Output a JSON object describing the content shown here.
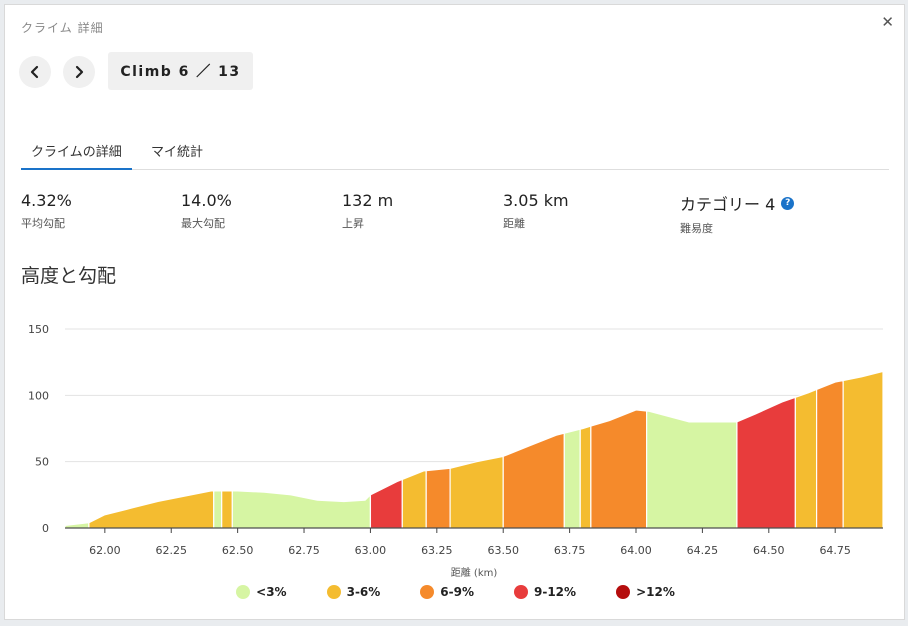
{
  "window": {
    "title": "クライム 詳細",
    "close_label": "✕"
  },
  "nav": {
    "prev_icon": "chevron-left-icon",
    "next_icon": "chevron-right-icon",
    "climb_label": "Climb 6 ／ 13"
  },
  "tabs": [
    {
      "label": "クライムの詳細",
      "active": true
    },
    {
      "label": "マイ統計",
      "active": false
    }
  ],
  "stats": [
    {
      "value": "4.32%",
      "label": "平均勾配"
    },
    {
      "value": "14.0%",
      "label": "最大勾配"
    },
    {
      "value": "132 m",
      "label": "上昇"
    },
    {
      "value": "3.05 km",
      "label": "距離"
    },
    {
      "value": "カテゴリー 4",
      "label": "難易度",
      "help": "?"
    }
  ],
  "section": {
    "title": "高度と勾配"
  },
  "chart_data": {
    "type": "area",
    "xlabel": "距離 (km)",
    "ylabel": "",
    "xlim": [
      61.85,
      64.93
    ],
    "ylim": [
      0,
      150
    ],
    "y_ticks": [
      0,
      50,
      100,
      150
    ],
    "x_ticks": [
      "62.00",
      "62.25",
      "62.50",
      "62.75",
      "63.00",
      "63.25",
      "63.50",
      "63.75",
      "64.00",
      "64.25",
      "64.50",
      "64.75"
    ],
    "grid": true,
    "profile": {
      "x": [
        61.85,
        61.94,
        62.0,
        62.1,
        62.2,
        62.3,
        62.4,
        62.5,
        62.6,
        62.7,
        62.8,
        62.9,
        62.98,
        63.0,
        63.1,
        63.2,
        63.3,
        63.4,
        63.5,
        63.6,
        63.7,
        63.8,
        63.9,
        64.0,
        64.05,
        64.2,
        64.38,
        64.45,
        64.55,
        64.65,
        64.75,
        64.85,
        64.93
      ],
      "y": [
        2,
        4,
        10,
        15,
        20,
        24,
        28,
        28,
        27,
        25,
        21,
        20,
        21,
        25,
        35,
        43,
        45,
        50,
        54,
        62,
        70,
        75,
        81,
        89,
        88,
        80,
        80,
        86,
        95,
        102,
        110,
        114,
        118
      ]
    },
    "segments": [
      {
        "start": 61.85,
        "end": 61.94,
        "grade": "<3%"
      },
      {
        "start": 61.94,
        "end": 62.41,
        "grade": "3-6%"
      },
      {
        "start": 62.41,
        "end": 62.44,
        "grade": "<3%"
      },
      {
        "start": 62.44,
        "end": 62.48,
        "grade": "3-6%"
      },
      {
        "start": 62.48,
        "end": 63.0,
        "grade": "<3%"
      },
      {
        "start": 63.0,
        "end": 63.12,
        "grade": "9-12%"
      },
      {
        "start": 63.12,
        "end": 63.21,
        "grade": "3-6%"
      },
      {
        "start": 63.21,
        "end": 63.3,
        "grade": "6-9%"
      },
      {
        "start": 63.3,
        "end": 63.5,
        "grade": "3-6%"
      },
      {
        "start": 63.5,
        "end": 63.73,
        "grade": "6-9%"
      },
      {
        "start": 63.73,
        "end": 63.79,
        "grade": "<3%"
      },
      {
        "start": 63.79,
        "end": 63.83,
        "grade": "3-6%"
      },
      {
        "start": 63.83,
        "end": 64.04,
        "grade": "6-9%"
      },
      {
        "start": 64.04,
        "end": 64.38,
        "grade": "<3%"
      },
      {
        "start": 64.38,
        "end": 64.6,
        "grade": "9-12%"
      },
      {
        "start": 64.6,
        "end": 64.68,
        "grade": "3-6%"
      },
      {
        "start": 64.68,
        "end": 64.78,
        "grade": "6-9%"
      },
      {
        "start": 64.78,
        "end": 64.93,
        "grade": "3-6%"
      }
    ],
    "legend": [
      {
        "label": "<3%",
        "color": "#d6f5a3"
      },
      {
        "label": "3-6%",
        "color": "#f4bc30"
      },
      {
        "label": "6-9%",
        "color": "#f58a2b"
      },
      {
        "label": "9-12%",
        "color": "#e83c3c"
      },
      {
        "label": ">12%",
        "color": "#b50d0d"
      }
    ]
  }
}
